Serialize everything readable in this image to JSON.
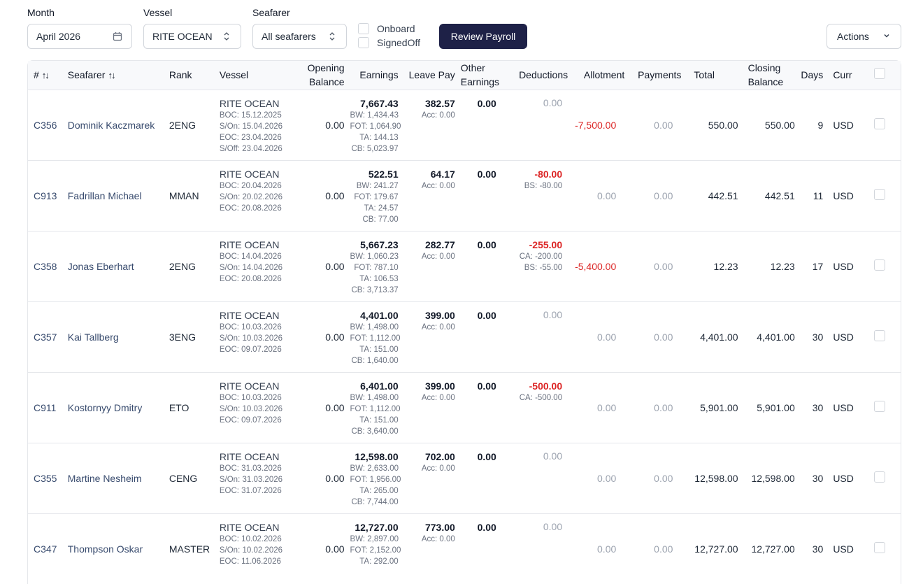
{
  "filters": {
    "month_label": "Month",
    "month_value": "April 2026",
    "vessel_label": "Vessel",
    "vessel_value": "RITE OCEAN",
    "seafarer_label": "Seafarer",
    "seafarer_value": "All seafarers",
    "onboard_label": "Onboard",
    "signedoff_label": "SignedOff",
    "review_label": "Review Payroll",
    "actions_label": "Actions"
  },
  "columns": {
    "num": "#",
    "seafarer": "Seafarer",
    "rank": "Rank",
    "vessel": "Vessel",
    "opening1": "Opening",
    "opening2": "Balance",
    "earnings": "Earnings",
    "leave": "Leave Pay",
    "other1": "Other",
    "other2": "Earnings",
    "deductions": "Deductions",
    "allotment": "Allotment",
    "payments": "Payments",
    "total": "Total",
    "closing1": "Closing",
    "closing2": "Balance",
    "days": "Days",
    "curr": "Curr"
  },
  "rows": [
    {
      "id": "C356",
      "name": "Dominik Kaczmarek",
      "rank": "2ENG",
      "vessel": "RITE OCEAN",
      "vl": [
        "BOC: 15.12.2025",
        "S/On: 15.04.2026",
        "EOC: 23.04.2026",
        "S/Off: 23.04.2026"
      ],
      "opening": "0.00",
      "earnings": "7,667.43",
      "el": [
        "BW: 1,434.43",
        "FOT: 1,064.90",
        "TA: 144.13",
        "CB: 5,023.97"
      ],
      "leave": "382.57",
      "leave_acc": "Acc: 0.00",
      "other": "0.00",
      "deductions": "0.00",
      "dl": [],
      "allotment": "-7,500.00",
      "payments": "0.00",
      "total": "550.00",
      "closing": "550.00",
      "days": "9",
      "curr": "USD"
    },
    {
      "id": "C913",
      "name": "Fadrillan Michael",
      "rank": "MMAN",
      "vessel": "RITE OCEAN",
      "vl": [
        "BOC: 20.04.2026",
        "S/On: 20.02.2026",
        "EOC: 20.08.2026"
      ],
      "opening": "0.00",
      "earnings": "522.51",
      "el": [
        "BW: 241.27",
        "FOT: 179.67",
        "TA: 24.57",
        "CB: 77.00"
      ],
      "leave": "64.17",
      "leave_acc": "Acc: 0.00",
      "other": "0.00",
      "deductions": "-80.00",
      "dl": [
        "BS: -80.00"
      ],
      "allotment": "0.00",
      "payments": "0.00",
      "total": "442.51",
      "closing": "442.51",
      "days": "11",
      "curr": "USD"
    },
    {
      "id": "C358",
      "name": "Jonas Eberhart",
      "rank": "2ENG",
      "vessel": "RITE OCEAN",
      "vl": [
        "BOC: 14.04.2026",
        "S/On: 14.04.2026",
        "EOC: 20.08.2026"
      ],
      "opening": "0.00",
      "earnings": "5,667.23",
      "el": [
        "BW: 1,060.23",
        "FOT: 787.10",
        "TA: 106.53",
        "CB: 3,713.37"
      ],
      "leave": "282.77",
      "leave_acc": "Acc: 0.00",
      "other": "0.00",
      "deductions": "-255.00",
      "dl": [
        "CA: -200.00",
        "BS: -55.00"
      ],
      "allotment": "-5,400.00",
      "payments": "0.00",
      "total": "12.23",
      "closing": "12.23",
      "days": "17",
      "curr": "USD"
    },
    {
      "id": "C357",
      "name": "Kai Tallberg",
      "rank": "3ENG",
      "vessel": "RITE OCEAN",
      "vl": [
        "BOC: 10.03.2026",
        "S/On: 10.03.2026",
        "EOC: 09.07.2026"
      ],
      "opening": "0.00",
      "earnings": "4,401.00",
      "el": [
        "BW: 1,498.00",
        "FOT: 1,112.00",
        "TA: 151.00",
        "CB: 1,640.00"
      ],
      "leave": "399.00",
      "leave_acc": "Acc: 0.00",
      "other": "0.00",
      "deductions": "0.00",
      "dl": [],
      "allotment": "0.00",
      "payments": "0.00",
      "total": "4,401.00",
      "closing": "4,401.00",
      "days": "30",
      "curr": "USD"
    },
    {
      "id": "C911",
      "name": "Kostornyy Dmitry",
      "rank": "ETO",
      "vessel": "RITE OCEAN",
      "vl": [
        "BOC: 10.03.2026",
        "S/On: 10.03.2026",
        "EOC: 09.07.2026"
      ],
      "opening": "0.00",
      "earnings": "6,401.00",
      "el": [
        "BW: 1,498.00",
        "FOT: 1,112.00",
        "TA: 151.00",
        "CB: 3,640.00"
      ],
      "leave": "399.00",
      "leave_acc": "Acc: 0.00",
      "other": "0.00",
      "deductions": "-500.00",
      "dl": [
        "CA: -500.00"
      ],
      "allotment": "0.00",
      "payments": "0.00",
      "total": "5,901.00",
      "closing": "5,901.00",
      "days": "30",
      "curr": "USD"
    },
    {
      "id": "C355",
      "name": "Martine Nesheim",
      "rank": "CENG",
      "vessel": "RITE OCEAN",
      "vl": [
        "BOC: 31.03.2026",
        "S/On: 31.03.2026",
        "EOC: 31.07.2026"
      ],
      "opening": "0.00",
      "earnings": "12,598.00",
      "el": [
        "BW: 2,633.00",
        "FOT: 1,956.00",
        "TA: 265.00",
        "CB: 7,744.00"
      ],
      "leave": "702.00",
      "leave_acc": "Acc: 0.00",
      "other": "0.00",
      "deductions": "0.00",
      "dl": [],
      "allotment": "0.00",
      "payments": "0.00",
      "total": "12,598.00",
      "closing": "12,598.00",
      "days": "30",
      "curr": "USD"
    },
    {
      "id": "C347",
      "name": "Thompson Oskar",
      "rank": "MASTER",
      "vessel": "RITE OCEAN",
      "vl": [
        "BOC: 10.02.2026",
        "S/On: 10.02.2026",
        "EOC: 11.06.2026"
      ],
      "opening": "0.00",
      "earnings": "12,727.00",
      "el": [
        "BW: 2,897.00",
        "FOT: 2,152.00",
        "TA: 292.00"
      ],
      "leave": "773.00",
      "leave_acc": "Acc: 0.00",
      "other": "0.00",
      "deductions": "0.00",
      "dl": [],
      "allotment": "0.00",
      "payments": "0.00",
      "total": "12,727.00",
      "closing": "12,727.00",
      "days": "30",
      "curr": "USD"
    }
  ]
}
